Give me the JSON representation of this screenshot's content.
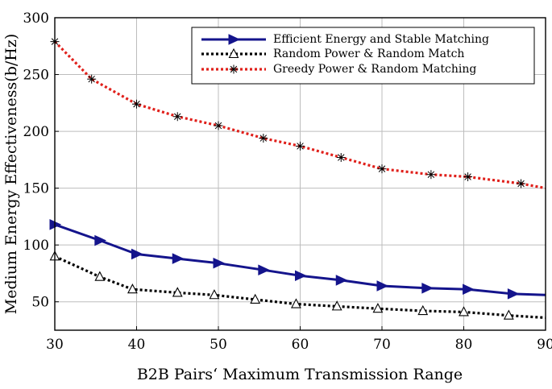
{
  "chart_data": {
    "type": "line",
    "title": "",
    "xlabel": "B2B Pairs‘ Maximum Transmission Range",
    "ylabel": "Medium Energy Effectiveness(b/Hz)",
    "xlim": [
      30,
      90
    ],
    "ylim": [
      25,
      300
    ],
    "xticks": [
      30,
      40,
      50,
      60,
      70,
      80,
      90
    ],
    "yticks": [
      50,
      100,
      150,
      200,
      250,
      300
    ],
    "grid": true,
    "legend_position": "top-right",
    "series": [
      {
        "name": "Efficient Energy and Stable Matching",
        "color": "#14148c",
        "line_style": "solid",
        "marker": "triangle-right",
        "x": [
          30,
          35.5,
          40,
          45,
          50,
          55.5,
          60,
          65,
          70,
          75.5,
          80.5,
          86,
          90
        ],
        "y": [
          118,
          104,
          92,
          88,
          84,
          78,
          73,
          69,
          64,
          62,
          61,
          57,
          56
        ]
      },
      {
        "name": "Random Power & Random Match",
        "color": "#000000",
        "line_style": "dotted",
        "marker": "triangle-up",
        "x": [
          30,
          35.5,
          39.5,
          45,
          49.5,
          54.5,
          59.5,
          64.5,
          69.5,
          75,
          80,
          85.5,
          90
        ],
        "y": [
          90,
          72,
          61,
          58,
          56,
          52,
          48,
          46,
          44,
          42,
          41,
          38,
          36
        ]
      },
      {
        "name": "Greedy Power & Random Matching",
        "color": "#e0201b",
        "line_style": "dotted",
        "marker": "asterisk",
        "x": [
          30,
          34.5,
          40,
          45,
          50,
          55.5,
          60,
          65,
          70,
          76,
          80.5,
          87,
          90
        ],
        "y": [
          279,
          246,
          224,
          213,
          205,
          194,
          187,
          177,
          167,
          162,
          160,
          154,
          150
        ]
      }
    ]
  }
}
